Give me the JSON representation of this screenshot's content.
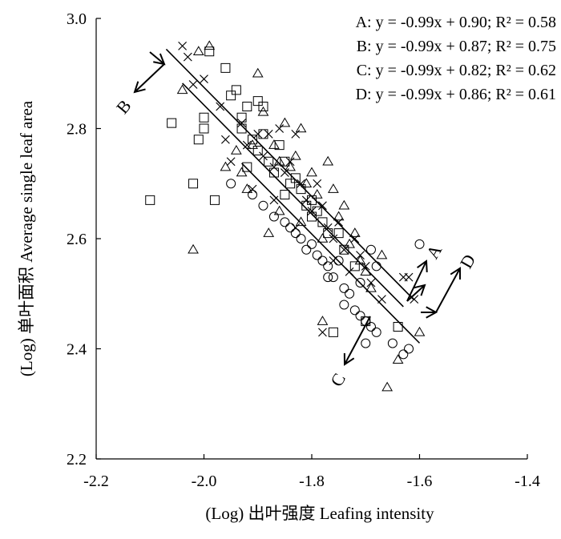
{
  "chart_data": {
    "type": "scatter",
    "xlabel": "(Log) 出叶强度 Leafing intensity",
    "ylabel": "(Log) 单叶面积 Average single leaf area",
    "xlim": [
      -2.2,
      -1.4
    ],
    "ylim": [
      2.2,
      3.0
    ],
    "xticks": [
      "-2.2",
      "-2.0",
      "-1.8",
      "-1.6",
      "-1.4"
    ],
    "yticks": [
      "2.2",
      "2.4",
      "2.6",
      "2.8",
      "3.0"
    ],
    "equations": [
      "A: y = -0.99x + 0.90; R² = 0.58",
      "B: y = -0.99x + 0.87; R² = 0.75",
      "C: y = -0.99x + 0.82; R² = 0.62",
      "D: y = -0.99x + 0.86; R² = 0.61"
    ],
    "group_labels": [
      "A",
      "B",
      "C",
      "D"
    ],
    "fit_lines": [
      {
        "name": "A",
        "slope": -0.99,
        "intercept": 0.9,
        "x": [
          -2.07,
          -1.61
        ]
      },
      {
        "name": "B",
        "slope": -0.99,
        "intercept": 0.87,
        "x": [
          -2.04,
          -1.63
        ]
      },
      {
        "name": "D",
        "slope": -0.99,
        "intercept": 0.86,
        "x": [
          -1.93,
          -1.6
        ]
      }
    ],
    "series": [
      {
        "marker": "square",
        "points": [
          [
            -2.1,
            2.67
          ],
          [
            -2.06,
            2.81
          ],
          [
            -2.02,
            2.7
          ],
          [
            -2.01,
            2.78
          ],
          [
            -2.0,
            2.82
          ],
          [
            -2.0,
            2.8
          ],
          [
            -1.99,
            2.94
          ],
          [
            -1.98,
            2.67
          ],
          [
            -1.96,
            2.91
          ],
          [
            -1.95,
            2.86
          ],
          [
            -1.94,
            2.87
          ],
          [
            -1.93,
            2.82
          ],
          [
            -1.93,
            2.8
          ],
          [
            -1.92,
            2.84
          ],
          [
            -1.91,
            2.78
          ],
          [
            -1.9,
            2.85
          ],
          [
            -1.9,
            2.76
          ],
          [
            -1.89,
            2.84
          ],
          [
            -1.89,
            2.79
          ],
          [
            -1.88,
            2.74
          ],
          [
            -1.87,
            2.72
          ],
          [
            -1.86,
            2.77
          ],
          [
            -1.85,
            2.74
          ],
          [
            -1.84,
            2.7
          ],
          [
            -1.83,
            2.71
          ],
          [
            -1.82,
            2.69
          ],
          [
            -1.81,
            2.66
          ],
          [
            -1.8,
            2.67
          ],
          [
            -1.79,
            2.65
          ],
          [
            -1.78,
            2.63
          ],
          [
            -1.77,
            2.61
          ],
          [
            -1.76,
            2.43
          ],
          [
            -1.75,
            2.61
          ],
          [
            -1.74,
            2.58
          ],
          [
            -1.72,
            2.55
          ],
          [
            -1.7,
            2.45
          ],
          [
            -1.64,
            2.44
          ],
          [
            -1.92,
            2.73
          ],
          [
            -1.85,
            2.68
          ],
          [
            -1.8,
            2.64
          ]
        ]
      },
      {
        "marker": "cross",
        "points": [
          [
            -2.04,
            2.95
          ],
          [
            -2.03,
            2.93
          ],
          [
            -2.02,
            2.88
          ],
          [
            -2.0,
            2.89
          ],
          [
            -1.97,
            2.84
          ],
          [
            -1.96,
            2.78
          ],
          [
            -1.95,
            2.74
          ],
          [
            -1.93,
            2.81
          ],
          [
            -1.92,
            2.77
          ],
          [
            -1.9,
            2.79
          ],
          [
            -1.89,
            2.75
          ],
          [
            -1.88,
            2.79
          ],
          [
            -1.87,
            2.73
          ],
          [
            -1.86,
            2.8
          ],
          [
            -1.85,
            2.72
          ],
          [
            -1.84,
            2.74
          ],
          [
            -1.83,
            2.79
          ],
          [
            -1.82,
            2.7
          ],
          [
            -1.81,
            2.67
          ],
          [
            -1.8,
            2.65
          ],
          [
            -1.79,
            2.7
          ],
          [
            -1.78,
            2.66
          ],
          [
            -1.77,
            2.62
          ],
          [
            -1.76,
            2.6
          ],
          [
            -1.75,
            2.63
          ],
          [
            -1.74,
            2.58
          ],
          [
            -1.73,
            2.54
          ],
          [
            -1.72,
            2.6
          ],
          [
            -1.71,
            2.57
          ],
          [
            -1.7,
            2.55
          ],
          [
            -1.69,
            2.52
          ],
          [
            -1.67,
            2.49
          ],
          [
            -1.63,
            2.53
          ],
          [
            -1.62,
            2.53
          ],
          [
            -1.61,
            2.49
          ],
          [
            -1.78,
            2.43
          ],
          [
            -1.87,
            2.67
          ],
          [
            -1.83,
            2.62
          ],
          [
            -1.76,
            2.56
          ],
          [
            -1.91,
            2.69
          ]
        ]
      },
      {
        "marker": "triangle",
        "points": [
          [
            -2.04,
            2.87
          ],
          [
            -2.02,
            2.58
          ],
          [
            -2.01,
            2.94
          ],
          [
            -1.99,
            2.95
          ],
          [
            -1.96,
            2.73
          ],
          [
            -1.94,
            2.76
          ],
          [
            -1.93,
            2.72
          ],
          [
            -1.92,
            2.69
          ],
          [
            -1.91,
            2.77
          ],
          [
            -1.9,
            2.9
          ],
          [
            -1.89,
            2.83
          ],
          [
            -1.88,
            2.61
          ],
          [
            -1.87,
            2.77
          ],
          [
            -1.86,
            2.74
          ],
          [
            -1.85,
            2.81
          ],
          [
            -1.84,
            2.73
          ],
          [
            -1.83,
            2.75
          ],
          [
            -1.82,
            2.8
          ],
          [
            -1.81,
            2.7
          ],
          [
            -1.8,
            2.72
          ],
          [
            -1.79,
            2.68
          ],
          [
            -1.78,
            2.6
          ],
          [
            -1.77,
            2.74
          ],
          [
            -1.76,
            2.69
          ],
          [
            -1.75,
            2.64
          ],
          [
            -1.74,
            2.66
          ],
          [
            -1.73,
            2.59
          ],
          [
            -1.72,
            2.61
          ],
          [
            -1.71,
            2.56
          ],
          [
            -1.7,
            2.54
          ],
          [
            -1.69,
            2.51
          ],
          [
            -1.67,
            2.57
          ],
          [
            -1.66,
            2.33
          ],
          [
            -1.64,
            2.38
          ],
          [
            -1.6,
            2.43
          ],
          [
            -1.78,
            2.45
          ],
          [
            -1.86,
            2.65
          ],
          [
            -1.82,
            2.63
          ]
        ]
      },
      {
        "marker": "circle",
        "points": [
          [
            -1.95,
            2.7
          ],
          [
            -1.91,
            2.68
          ],
          [
            -1.89,
            2.66
          ],
          [
            -1.87,
            2.64
          ],
          [
            -1.85,
            2.63
          ],
          [
            -1.83,
            2.61
          ],
          [
            -1.82,
            2.6
          ],
          [
            -1.81,
            2.58
          ],
          [
            -1.8,
            2.59
          ],
          [
            -1.79,
            2.57
          ],
          [
            -1.78,
            2.56
          ],
          [
            -1.77,
            2.55
          ],
          [
            -1.76,
            2.53
          ],
          [
            -1.75,
            2.56
          ],
          [
            -1.74,
            2.51
          ],
          [
            -1.73,
            2.5
          ],
          [
            -1.72,
            2.47
          ],
          [
            -1.71,
            2.46
          ],
          [
            -1.7,
            2.45
          ],
          [
            -1.7,
            2.41
          ],
          [
            -1.69,
            2.44
          ],
          [
            -1.68,
            2.43
          ],
          [
            -1.71,
            2.52
          ],
          [
            -1.69,
            2.58
          ],
          [
            -1.68,
            2.55
          ],
          [
            -1.65,
            2.41
          ],
          [
            -1.63,
            2.39
          ],
          [
            -1.62,
            2.4
          ],
          [
            -1.6,
            2.59
          ],
          [
            -1.74,
            2.48
          ],
          [
            -1.84,
            2.62
          ],
          [
            -1.77,
            2.53
          ]
        ]
      }
    ]
  }
}
